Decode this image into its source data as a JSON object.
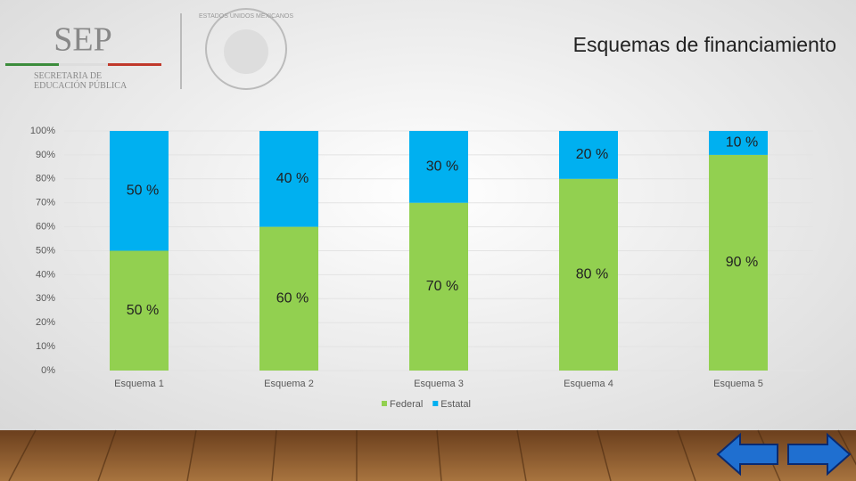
{
  "header": {
    "logo": "SEP",
    "logo_subtitle": "SECRETARÍA DE EDUCACIÓN PÚBLICA",
    "seal": "ESTADOS UNIDOS MEXICANOS"
  },
  "chart_data": {
    "type": "stacked_bar",
    "title": "Esquemas de financiamiento",
    "categories": [
      "Esquema 1",
      "Esquema 2",
      "Esquema 3",
      "Esquema 4",
      "Esquema 5"
    ],
    "series": [
      {
        "name": "Federal",
        "color": "#92d050",
        "values": [
          50,
          60,
          70,
          80,
          90
        ],
        "value_labels": [
          "50 %",
          "60 %",
          "70 %",
          "80 %",
          "90 %"
        ]
      },
      {
        "name": "Estatal",
        "color": "#00b0f0",
        "values": [
          50,
          40,
          30,
          20,
          10
        ],
        "value_labels": [
          "50 %",
          "40 %",
          "30 %",
          "20 %",
          "10 %"
        ]
      }
    ],
    "ylim": [
      0,
      100
    ],
    "yticks": [
      {
        "value": 0,
        "label": "0%"
      },
      {
        "value": 10,
        "label": "10%"
      },
      {
        "value": 20,
        "label": "20%"
      },
      {
        "value": 30,
        "label": "30%"
      },
      {
        "value": 40,
        "label": "40%"
      },
      {
        "value": 50,
        "label": "50%"
      },
      {
        "value": 60,
        "label": "60%"
      },
      {
        "value": 70,
        "label": "70%"
      },
      {
        "value": 80,
        "label": "80%"
      },
      {
        "value": 90,
        "label": "90%"
      },
      {
        "value": 100,
        "label": "100%"
      }
    ],
    "grid": true,
    "legend": "bottom"
  }
}
